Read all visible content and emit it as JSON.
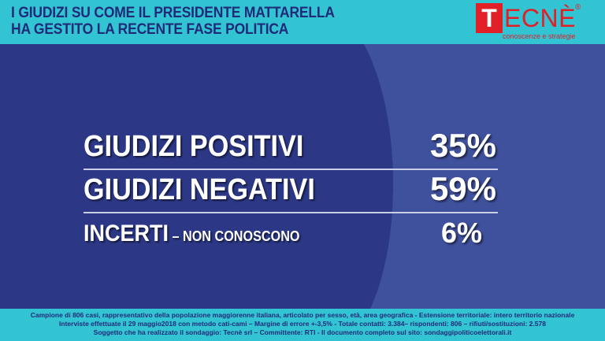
{
  "header": {
    "title_line1": "I GIUDIZI SU COME IL PRESIDENTE MATTARELLA",
    "title_line2": "HA GESTITO LA RECENTE FASE POLITICA"
  },
  "logo": {
    "first_letter": "T",
    "rest": "ECNÈ",
    "registered": "®",
    "tagline": "conoscenze e strategie",
    "brand_color": "#e11f26"
  },
  "chart_data": {
    "type": "table",
    "unit": "%",
    "rows": [
      {
        "label": "GIUDIZI POSITIVI",
        "sublabel": "",
        "value": 35,
        "display": "35%"
      },
      {
        "label": "GIUDIZI NEGATIVI",
        "sublabel": "",
        "value": 59,
        "display": "59%"
      },
      {
        "label": "INCERTI",
        "sublabel": "– NON CONOSCONO",
        "value": 6,
        "display": "6%"
      }
    ]
  },
  "footer": {
    "line1": "Campione di 806 casi, rappresentativo della popolazione maggiorenne italiana, articolato per sesso, età, area geografica - Estensione territoriale: intero territorio nazionale",
    "line2": "Interviste effettuate il 29 maggio2018 con metodo cati-cami – Margine di errore +-3,5% - Totale contatti: 3.384– rispondenti: 806 – rifiuti/sostituzioni: 2.578",
    "line3": "Soggetto che ha realizzato il sondaggio: Tecnè srl – Committente: RTI - Il documento completo sul sito: sondaggipoliticoelettorali.it"
  },
  "colors": {
    "header_bg": "#33c4d4",
    "panel_bg": "#3f509c",
    "panel_dark": "#2c3886",
    "title_text": "#1f2a78"
  }
}
